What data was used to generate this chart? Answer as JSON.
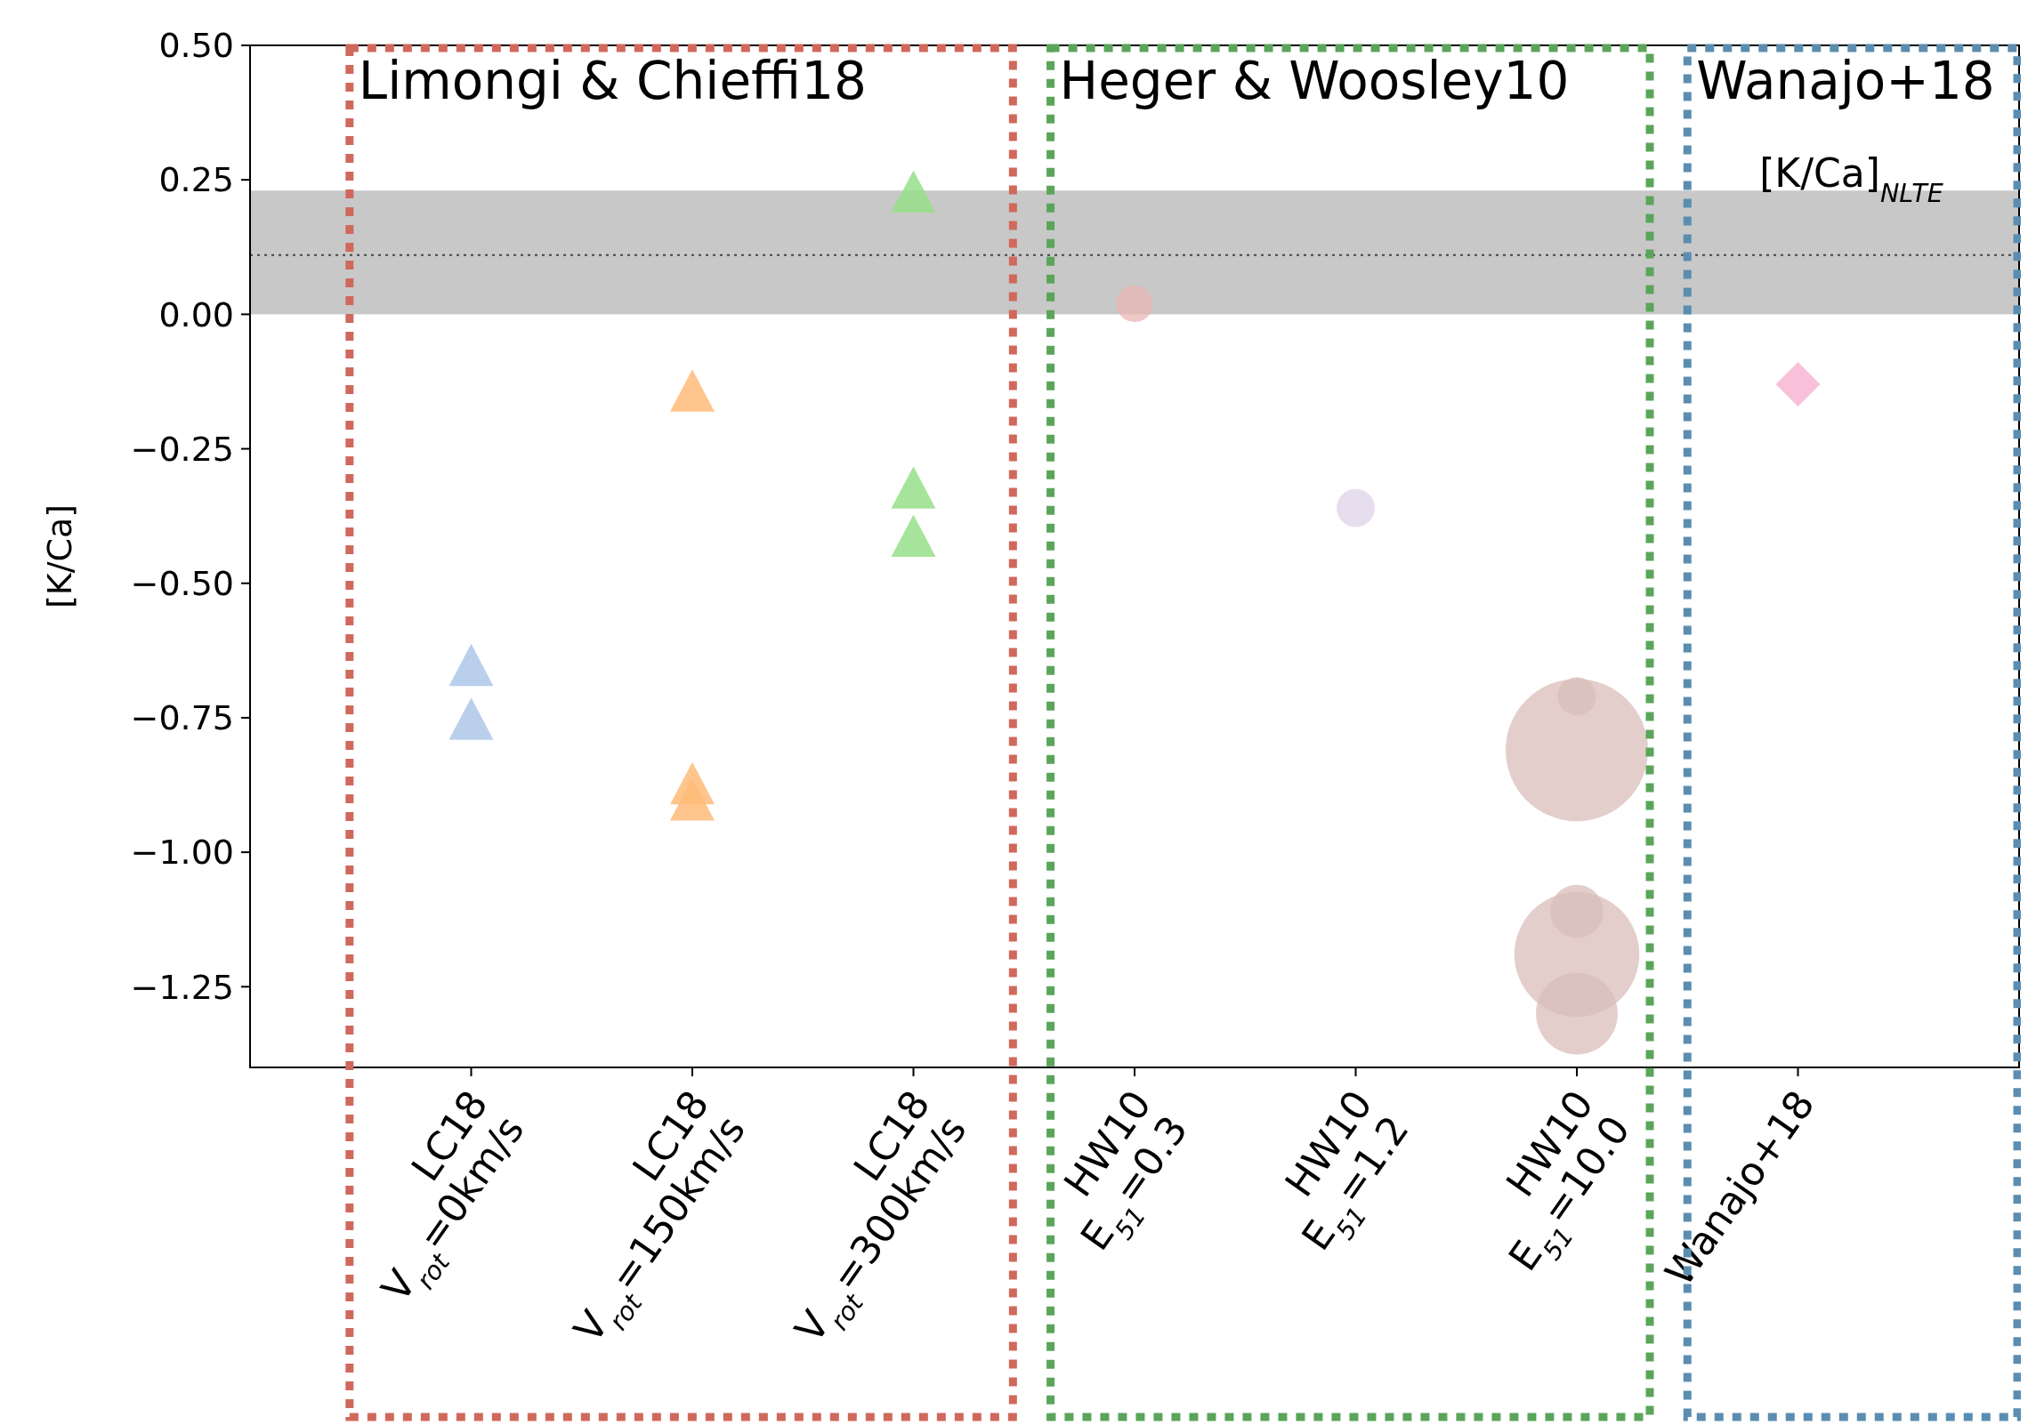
{
  "chart_data": {
    "type": "scatter",
    "ylabel": "[K/Ca]",
    "categories": [
      "LC18\nV$_{rot}$=0km/s",
      "LC18\nV$_{rot}$=150km/s",
      "LC18\nV$_{rot}$=300km/s",
      "HW10\nE$_{51}$=0.3",
      "HW10\nE$_{51}$=1.2",
      "HW10\nE$_{51}$=10.0",
      "Wanajo+18"
    ],
    "series": [
      {
        "type": "scatter",
        "marker": "triangle",
        "color": "#aec7e8",
        "x": [
          "LC18\nV$_{rot}$=0km/s",
          "LC18\nV$_{rot}$=0km/s"
        ],
        "values": [
          -0.66,
          -0.76
        ]
      },
      {
        "type": "scatter",
        "marker": "triangle",
        "color": "#ffbb78",
        "x": [
          "LC18\nV$_{rot}$=150km/s",
          "LC18\nV$_{rot}$=150km/s",
          "LC18\nV$_{rot}$=150km/s"
        ],
        "values": [
          -0.15,
          -0.88,
          -0.91
        ]
      },
      {
        "type": "scatter",
        "marker": "triangle",
        "color": "#98df8a",
        "x": [
          "LC18\nV$_{rot}$=300km/s",
          "LC18\nV$_{rot}$=300km/s",
          "LC18\nV$_{rot}$=300km/s"
        ],
        "values": [
          0.22,
          -0.33,
          -0.42
        ]
      },
      {
        "type": "bubble",
        "color": "#eab5b5",
        "x": [
          "HW10\nE$_{51}$=0.3"
        ],
        "values": [
          0.02
        ],
        "sizes": [
          0.067
        ]
      },
      {
        "type": "bubble",
        "color": "#ddd3e8",
        "x": [
          "HW10\nE$_{51}$=1.2"
        ],
        "values": [
          -0.36
        ],
        "sizes": [
          0.072
        ]
      },
      {
        "type": "bubble",
        "color": "#d9bdb9",
        "x": [
          "HW10\nE$_{51}$=10.0",
          "HW10\nE$_{51}$=10.0",
          "HW10\nE$_{51}$=10.0",
          "HW10\nE$_{51}$=10.0",
          "HW10\nE$_{51}$=10.0"
        ],
        "values": [
          -0.71,
          -0.81,
          -1.11,
          -1.19,
          -1.3
        ],
        "sizes": [
          0.072,
          1,
          0.14,
          0.77,
          0.33
        ]
      },
      {
        "type": "scatter",
        "marker": "diamond",
        "color": "#f7b6d2",
        "x": [
          "Wanajo+18"
        ],
        "values": [
          -0.13
        ]
      }
    ],
    "ylim": [
      -1.4,
      0.5
    ],
    "yticks": [
      {
        "value": 0.5,
        "label": "0.50"
      },
      {
        "value": 0.25,
        "label": "0.25"
      },
      {
        "value": 0,
        "label": "0.00"
      },
      {
        "value": -0.25,
        "label": "−0.25"
      },
      {
        "value": -0.5,
        "label": "−0.50"
      },
      {
        "value": -0.75,
        "label": "−0.75"
      },
      {
        "value": -1,
        "label": "−1.00"
      },
      {
        "value": -1.25,
        "label": "−1.25"
      }
    ],
    "bands": [
      {
        "axis": "y",
        "from": 0,
        "to": 0.23,
        "label": "[K/Ca]$_{NLTE}$",
        "color": "#c8c8c8"
      }
    ],
    "ref_lines": [
      {
        "axis": "y",
        "value": 0.11,
        "line_style": "dotted",
        "color": "#444444"
      }
    ],
    "annotations": [
      "Limongi & Chieffi18",
      "Heger & Woosley10",
      "Wanajo+18"
    ],
    "grid": false
  }
}
